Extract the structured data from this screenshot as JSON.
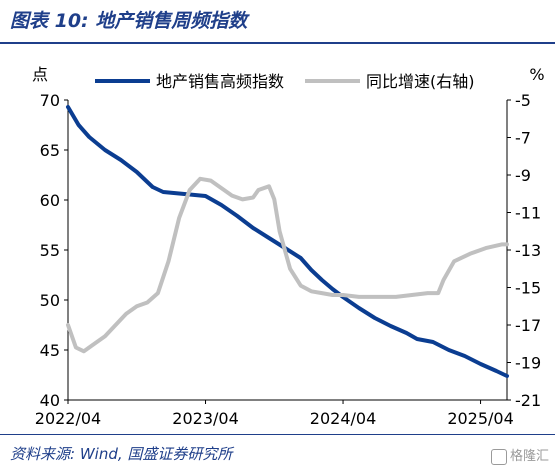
{
  "title": "图表 10:  地产销售周频指数",
  "source": "资料来源:  Wind,  国盛证券研究所",
  "watermark": "格隆汇",
  "chart_data": {
    "type": "line",
    "left_axis_unit": "点",
    "right_axis_unit": "%",
    "x_tick_labels": [
      "2022/04",
      "2023/04",
      "2024/04",
      "2025/04"
    ],
    "x_ticks": [
      0,
      52,
      104,
      156
    ],
    "y_left": {
      "min": 40,
      "max": 70,
      "step": 5
    },
    "y_right": {
      "min": -21,
      "max": -5,
      "step": 2
    },
    "legend_position": "top",
    "colors": {
      "primary": "#0b3d91",
      "secondary": "#c0c0c0",
      "accent": "#1f3f8a"
    },
    "series": [
      {
        "name": "地产销售高频指数",
        "axis": "left",
        "color": "#0b3d91",
        "points": [
          [
            0,
            69.3
          ],
          [
            4,
            67.5
          ],
          [
            8,
            66.3
          ],
          [
            14,
            65.0
          ],
          [
            20,
            64.0
          ],
          [
            26,
            62.8
          ],
          [
            32,
            61.3
          ],
          [
            36,
            60.8
          ],
          [
            44,
            60.6
          ],
          [
            52,
            60.4
          ],
          [
            58,
            59.5
          ],
          [
            64,
            58.4
          ],
          [
            70,
            57.2
          ],
          [
            76,
            56.2
          ],
          [
            82,
            55.2
          ],
          [
            88,
            54.2
          ],
          [
            92,
            53.0
          ],
          [
            96,
            52.0
          ],
          [
            100,
            51.1
          ],
          [
            104,
            50.3
          ],
          [
            110,
            49.2
          ],
          [
            116,
            48.2
          ],
          [
            122,
            47.4
          ],
          [
            128,
            46.7
          ],
          [
            132,
            46.1
          ],
          [
            138,
            45.8
          ],
          [
            144,
            45.0
          ],
          [
            150,
            44.4
          ],
          [
            156,
            43.6
          ],
          [
            162,
            42.9
          ],
          [
            166,
            42.4
          ]
        ]
      },
      {
        "name": "同比增速(右轴)",
        "axis": "right",
        "color": "#c0c0c0",
        "points": [
          [
            0,
            -17.0
          ],
          [
            3,
            -18.2
          ],
          [
            6,
            -18.4
          ],
          [
            10,
            -18.0
          ],
          [
            14,
            -17.6
          ],
          [
            18,
            -17.0
          ],
          [
            22,
            -16.4
          ],
          [
            26,
            -16.0
          ],
          [
            30,
            -15.8
          ],
          [
            34,
            -15.3
          ],
          [
            38,
            -13.6
          ],
          [
            42,
            -11.3
          ],
          [
            46,
            -9.8
          ],
          [
            50,
            -9.2
          ],
          [
            54,
            -9.3
          ],
          [
            58,
            -9.7
          ],
          [
            62,
            -10.1
          ],
          [
            66,
            -10.3
          ],
          [
            70,
            -10.2
          ],
          [
            72,
            -9.8
          ],
          [
            76,
            -9.6
          ],
          [
            78,
            -10.3
          ],
          [
            80,
            -12.0
          ],
          [
            84,
            -14.0
          ],
          [
            88,
            -14.9
          ],
          [
            92,
            -15.2
          ],
          [
            96,
            -15.3
          ],
          [
            100,
            -15.4
          ],
          [
            104,
            -15.4
          ],
          [
            110,
            -15.5
          ],
          [
            116,
            -15.5
          ],
          [
            124,
            -15.5
          ],
          [
            130,
            -15.4
          ],
          [
            136,
            -15.3
          ],
          [
            140,
            -15.3
          ],
          [
            142,
            -14.6
          ],
          [
            146,
            -13.6
          ],
          [
            152,
            -13.2
          ],
          [
            158,
            -12.9
          ],
          [
            164,
            -12.7
          ],
          [
            166,
            -12.7
          ]
        ]
      }
    ],
    "x_max": 166,
    "grid": false
  }
}
